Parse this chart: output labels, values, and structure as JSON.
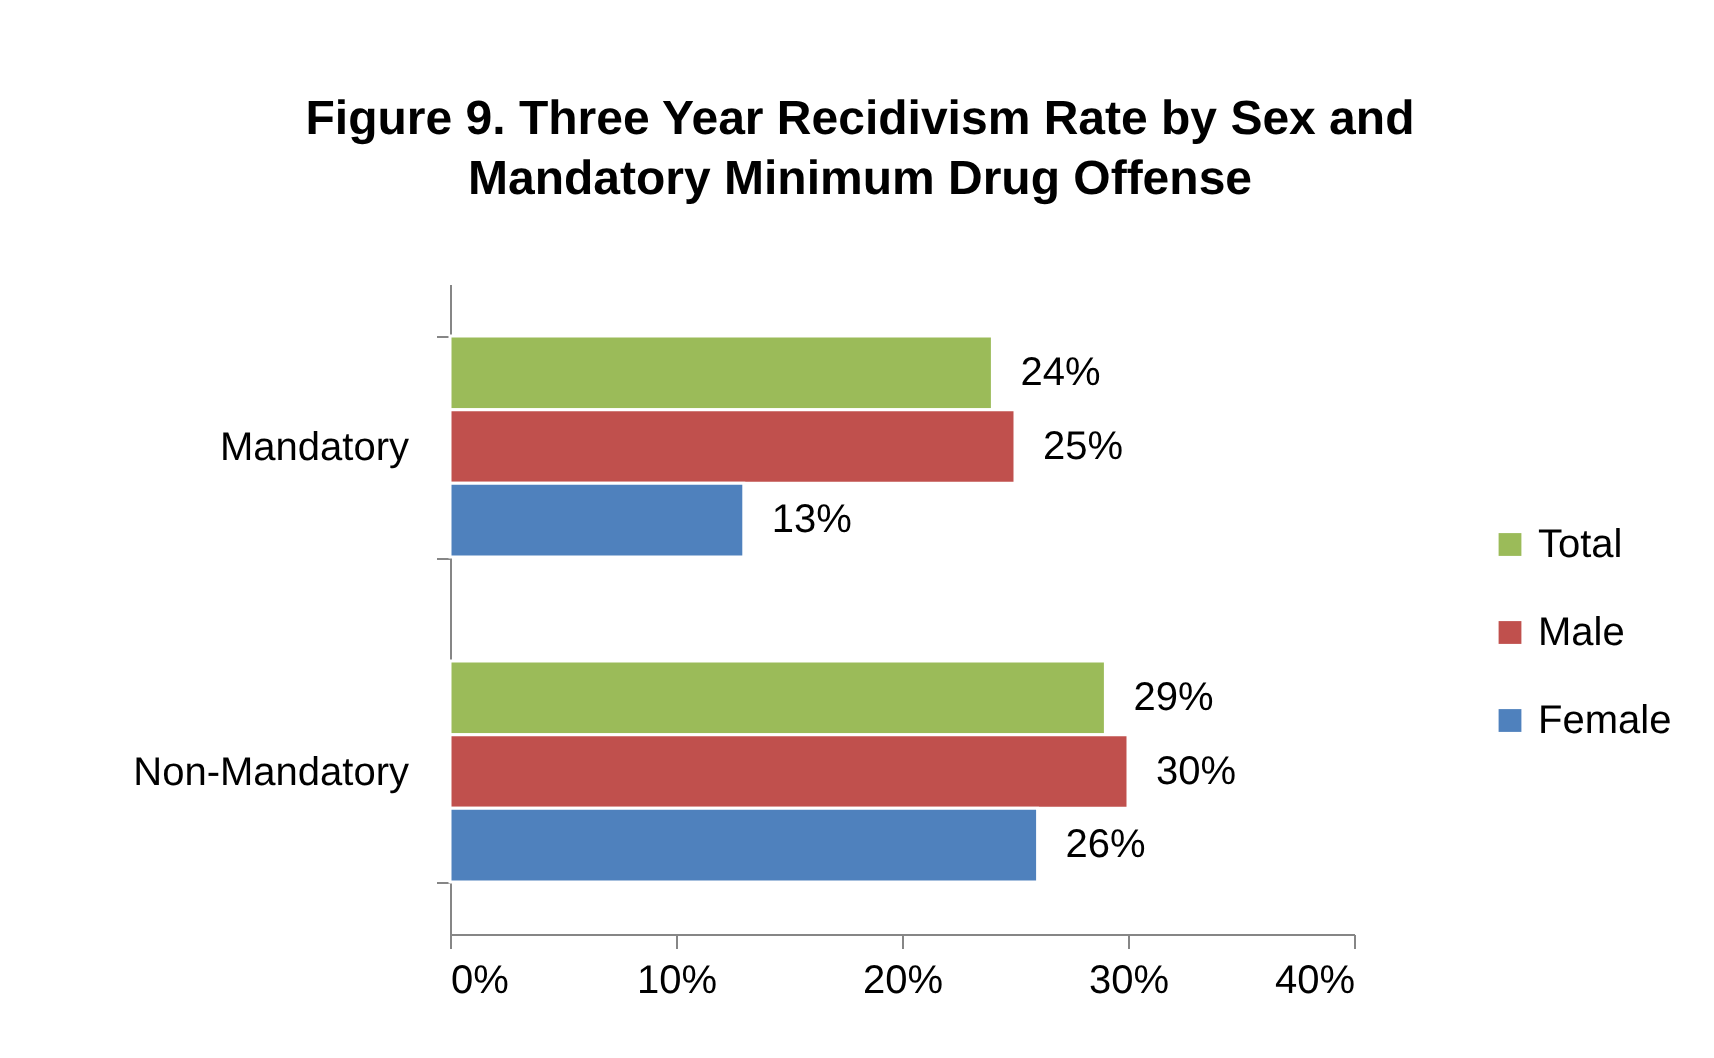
{
  "chart_data": {
    "type": "bar",
    "orientation": "horizontal",
    "title": "Figure 9. Three Year Recidivism Rate by Sex and Mandatory Minimum Drug Offense",
    "categories": [
      "Mandatory",
      "Non-Mandatory"
    ],
    "series": [
      {
        "name": "Total",
        "color": "#9bbb59",
        "values": [
          24,
          29
        ],
        "value_labels": [
          "24%",
          "29%"
        ]
      },
      {
        "name": "Male",
        "color": "#c0504d",
        "values": [
          25,
          30
        ],
        "value_labels": [
          "25%",
          "30%"
        ]
      },
      {
        "name": "Female",
        "color": "#4f81bd",
        "values": [
          13,
          26
        ],
        "value_labels": [
          "13%",
          "26%"
        ]
      }
    ],
    "xlim": [
      0,
      40
    ],
    "xticks": [
      {
        "value": 0,
        "label": "0%"
      },
      {
        "value": 10,
        "label": "10%"
      },
      {
        "value": 20,
        "label": "20%"
      },
      {
        "value": 30,
        "label": "30%"
      },
      {
        "value": 40,
        "label": "40%"
      }
    ],
    "grid": false,
    "legend": "right"
  }
}
